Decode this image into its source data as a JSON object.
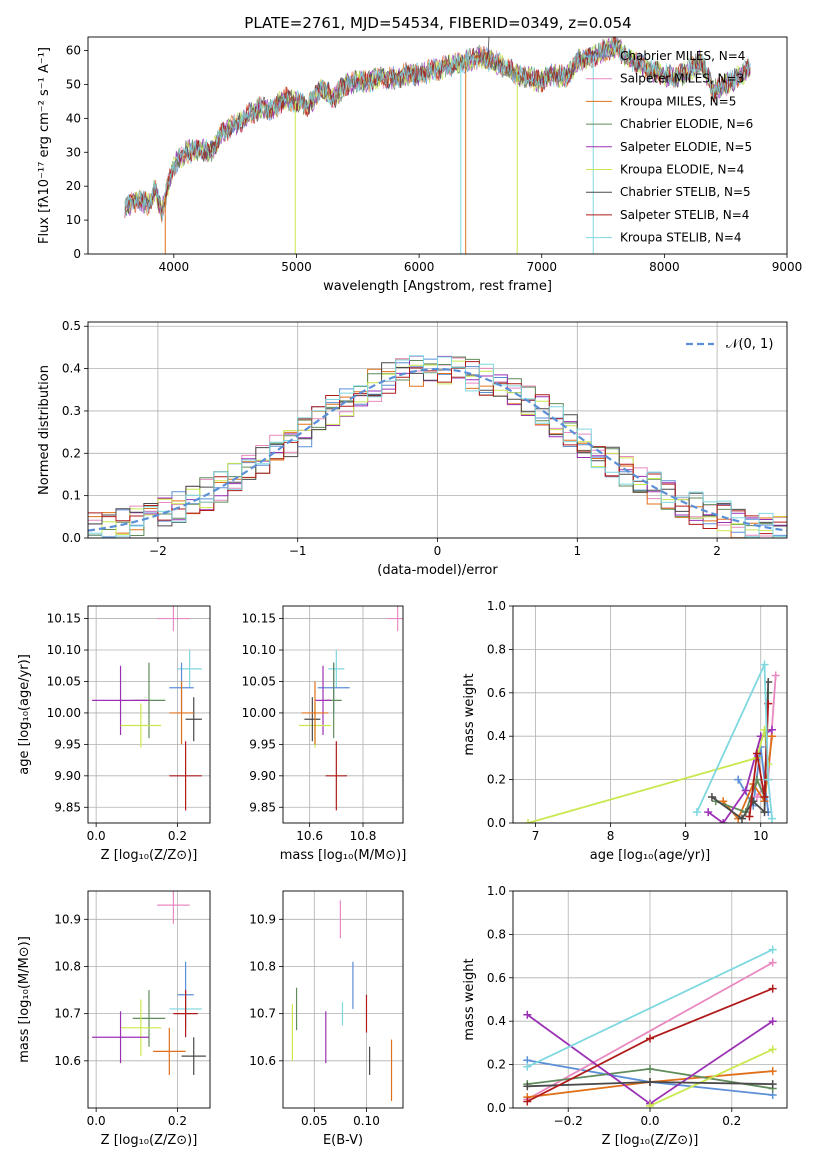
{
  "chart_data": [
    {
      "id": "spectrum",
      "type": "line",
      "title": "PLATE=2761, MJD=54534, FIBERID=0349, z=0.054",
      "xlabel": "wavelength [Angstrom, rest frame]",
      "ylabel": "Flux [fλ10⁻¹⁷ erg cm⁻² s⁻¹ A⁻¹]",
      "xlim": [
        3300,
        9000
      ],
      "ylim": [
        0,
        64
      ],
      "xticks": [
        4000,
        5000,
        6000,
        7000,
        8000,
        9000
      ],
      "yticks": [
        0,
        10,
        20,
        30,
        40,
        50,
        60
      ],
      "legend_position": "right",
      "series": [
        {
          "name": "Chabrier MILES, N_SSP=4",
          "color": "#5b8fd8"
        },
        {
          "name": "Salpeter MILES, N_SSP=3",
          "color": "#e889c0"
        },
        {
          "name": "Kroupa MILES, N_SSP=5",
          "color": "#e0701a"
        },
        {
          "name": "Chabrier ELODIE, N_SSP=6",
          "color": "#5f8c5a"
        },
        {
          "name": "Salpeter ELODIE, N_SSP=5",
          "color": "#9b30b5"
        },
        {
          "name": "Kroupa ELODIE, N_SSP=4",
          "color": "#c9e84e"
        },
        {
          "name": "Chabrier STELIB, N_SSP=5",
          "color": "#4a4a4a"
        },
        {
          "name": "Salpeter STELIB, N_SSP=4",
          "color": "#b01a1a"
        },
        {
          "name": "Kroupa STELIB, N_SSP=4",
          "color": "#7fd8e0"
        }
      ],
      "continuum": [
        [
          3600,
          14
        ],
        [
          3700,
          16
        ],
        [
          3800,
          15
        ],
        [
          3850,
          19
        ],
        [
          3900,
          12
        ],
        [
          3950,
          20
        ],
        [
          4000,
          26
        ],
        [
          4100,
          30
        ],
        [
          4200,
          31
        ],
        [
          4300,
          30
        ],
        [
          4350,
          33
        ],
        [
          4400,
          36
        ],
        [
          4500,
          38
        ],
        [
          4600,
          41
        ],
        [
          4700,
          43
        ],
        [
          4800,
          42
        ],
        [
          4900,
          46
        ],
        [
          5000,
          45
        ],
        [
          5100,
          44
        ],
        [
          5200,
          49
        ],
        [
          5300,
          46
        ],
        [
          5400,
          50
        ],
        [
          5500,
          51
        ],
        [
          5600,
          51
        ],
        [
          5700,
          52
        ],
        [
          5800,
          52
        ],
        [
          5900,
          53
        ],
        [
          6000,
          53
        ],
        [
          6100,
          54
        ],
        [
          6200,
          55
        ],
        [
          6300,
          56
        ],
        [
          6400,
          57
        ],
        [
          6500,
          58
        ],
        [
          6600,
          57
        ],
        [
          6700,
          55
        ],
        [
          6800,
          53
        ],
        [
          6900,
          52
        ],
        [
          7000,
          51
        ],
        [
          7100,
          53
        ],
        [
          7200,
          52
        ],
        [
          7300,
          57
        ],
        [
          7400,
          58
        ],
        [
          7500,
          60
        ],
        [
          7600,
          61
        ],
        [
          7700,
          58
        ],
        [
          7800,
          56
        ],
        [
          7900,
          54
        ],
        [
          8000,
          53
        ],
        [
          8100,
          52
        ],
        [
          8200,
          54
        ],
        [
          8300,
          57
        ],
        [
          8400,
          48
        ],
        [
          8500,
          50
        ],
        [
          8600,
          52
        ],
        [
          8700,
          55
        ]
      ],
      "dips": [
        [
          3930,
          0
        ],
        [
          4990,
          0
        ],
        [
          6340,
          0
        ],
        [
          6380,
          0
        ],
        [
          6800,
          0
        ],
        [
          7420,
          0
        ]
      ],
      "spike": [
        6560,
        64
      ]
    },
    {
      "id": "residuals",
      "type": "line",
      "xlabel": "(data-model)/error",
      "ylabel": "Normed distribution",
      "xlim": [
        -2.5,
        2.5
      ],
      "ylim": [
        0,
        0.51
      ],
      "xticks": [
        -2,
        -1,
        0,
        1,
        2
      ],
      "yticks": [
        0.0,
        0.1,
        0.2,
        0.3,
        0.4,
        0.5
      ],
      "legend": "𝒩(0, 1)",
      "bin_width": 0.1,
      "gaussian": {
        "mu": 0,
        "sigma": 1,
        "color": "#5b8fd8"
      }
    },
    {
      "id": "age-vs-Z",
      "type": "scatter",
      "xlabel": "Z [log₁₀(Z/Z⊙)]",
      "ylabel": "age  [log₁₀(age/yr)]",
      "xlim": [
        -0.02,
        0.28
      ],
      "ylim": [
        9.825,
        10.17
      ],
      "xticks": [
        0.0,
        0.2
      ],
      "yticks": [
        9.85,
        9.9,
        9.95,
        10.0,
        10.05,
        10.1,
        10.15
      ],
      "points": [
        {
          "x": 0.19,
          "xerr": 0.04,
          "y": 10.15,
          "yerr": 0.02,
          "color": "#e889c0"
        },
        {
          "x": 0.23,
          "xerr": 0.03,
          "y": 10.07,
          "yerr": 0.03,
          "color": "#7fd8e0"
        },
        {
          "x": 0.21,
          "xerr": 0.03,
          "y": 10.04,
          "yerr": 0.04,
          "color": "#5b8fd8"
        },
        {
          "x": 0.13,
          "xerr": 0.04,
          "y": 10.02,
          "yerr": 0.06,
          "color": "#5f8c5a"
        },
        {
          "x": 0.06,
          "xerr": 0.07,
          "y": 10.02,
          "yerr": 0.055,
          "color": "#9b30b5"
        },
        {
          "x": 0.11,
          "xerr": 0.05,
          "y": 9.98,
          "yerr": 0.035,
          "color": "#c9e84e"
        },
        {
          "x": 0.24,
          "xerr": 0.02,
          "y": 9.99,
          "yerr": 0.035,
          "color": "#4a4a4a"
        },
        {
          "x": 0.21,
          "xerr": 0.03,
          "y": 10.0,
          "yerr": 0.05,
          "color": "#e0701a"
        },
        {
          "x": 0.22,
          "xerr": 0.04,
          "y": 9.9,
          "yerr": 0.055,
          "color": "#b01a1a"
        }
      ]
    },
    {
      "id": "age-vs-mass",
      "type": "scatter",
      "xlabel": "mass [log₁₀(M/M⊙)]",
      "xlim": [
        10.5,
        10.95
      ],
      "ylim": [
        9.825,
        10.17
      ],
      "xticks": [
        10.6,
        10.8
      ],
      "yticks": [
        9.85,
        9.9,
        9.95,
        10.0,
        10.05,
        10.1,
        10.15
      ],
      "points": [
        {
          "x": 10.93,
          "xerr": 0.04,
          "y": 10.15,
          "yerr": 0.02,
          "color": "#e889c0"
        },
        {
          "x": 10.7,
          "xerr": 0.03,
          "y": 10.07,
          "yerr": 0.03,
          "color": "#7fd8e0"
        },
        {
          "x": 10.69,
          "xerr": 0.06,
          "y": 10.04,
          "yerr": 0.04,
          "color": "#5b8fd8"
        },
        {
          "x": 10.69,
          "xerr": 0.03,
          "y": 10.02,
          "yerr": 0.06,
          "color": "#5f8c5a"
        },
        {
          "x": 10.65,
          "xerr": 0.03,
          "y": 10.02,
          "yerr": 0.055,
          "color": "#9b30b5"
        },
        {
          "x": 10.62,
          "xerr": 0.06,
          "y": 9.98,
          "yerr": 0.035,
          "color": "#c9e84e"
        },
        {
          "x": 10.61,
          "xerr": 0.03,
          "y": 9.99,
          "yerr": 0.035,
          "color": "#4a4a4a"
        },
        {
          "x": 10.62,
          "xerr": 0.05,
          "y": 10.0,
          "yerr": 0.05,
          "color": "#e0701a"
        },
        {
          "x": 10.7,
          "xerr": 0.04,
          "y": 9.9,
          "yerr": 0.055,
          "color": "#b01a1a"
        }
      ]
    },
    {
      "id": "mass-weight-vs-age",
      "type": "line",
      "xlabel": "age  [log₁₀(age/yr)]",
      "ylabel": "mass weight",
      "xlim": [
        6.7,
        10.35
      ],
      "ylim": [
        0,
        1.0
      ],
      "xticks": [
        7,
        8,
        9,
        10
      ],
      "yticks": [
        0.0,
        0.2,
        0.4,
        0.6,
        0.8,
        1.0
      ],
      "series": [
        {
          "color": "#5b8fd8",
          "x": [
            9.7,
            9.9,
            10.0,
            10.1
          ],
          "y": [
            0.2,
            0.08,
            0.35,
            0.05
          ]
        },
        {
          "color": "#e889c0",
          "x": [
            9.95,
            10.1,
            10.2
          ],
          "y": [
            0.12,
            0.2,
            0.68
          ]
        },
        {
          "color": "#e0701a",
          "x": [
            9.5,
            9.7,
            9.9,
            10.05,
            10.15
          ],
          "y": [
            0.1,
            0.02,
            0.18,
            0.1,
            0.4
          ]
        },
        {
          "color": "#5f8c5a",
          "x": [
            9.4,
            9.8,
            9.95,
            10.05,
            10.1
          ],
          "y": [
            0.1,
            0.05,
            0.2,
            0.12,
            0.6
          ]
        },
        {
          "color": "#9b30b5",
          "x": [
            9.3,
            9.5,
            9.8,
            10.0,
            10.15
          ],
          "y": [
            0.05,
            0.0,
            0.15,
            0.4,
            0.43
          ]
        },
        {
          "color": "#c9e84e",
          "x": [
            6.9,
            9.95,
            10.05,
            10.1
          ],
          "y": [
            0.0,
            0.3,
            0.43,
            0.27
          ]
        },
        {
          "color": "#4a4a4a",
          "x": [
            9.35,
            9.75,
            9.9,
            10.05,
            10.1
          ],
          "y": [
            0.12,
            0.02,
            0.1,
            0.05,
            0.65
          ]
        },
        {
          "color": "#b01a1a",
          "x": [
            9.85,
            9.95,
            10.05,
            10.1
          ],
          "y": [
            0.03,
            0.32,
            0.12,
            0.55
          ]
        },
        {
          "color": "#7fd8e0",
          "x": [
            9.15,
            10.05,
            10.1,
            10.15
          ],
          "y": [
            0.05,
            0.73,
            0.2,
            0.02
          ]
        }
      ]
    },
    {
      "id": "mass-vs-Z",
      "type": "scatter",
      "xlabel": "Z [log₁₀(Z/Z⊙)]",
      "ylabel": "mass [log₁₀(M/M⊙)]",
      "xlim": [
        -0.02,
        0.28
      ],
      "ylim": [
        10.5,
        10.96
      ],
      "xticks": [
        0.0,
        0.2
      ],
      "yticks": [
        10.6,
        10.7,
        10.8,
        10.9
      ],
      "points": [
        {
          "x": 0.19,
          "xerr": 0.04,
          "y": 10.93,
          "yerr": 0.04,
          "color": "#e889c0"
        },
        {
          "x": 0.22,
          "xerr": 0.02,
          "y": 10.74,
          "yerr": 0.07,
          "color": "#5b8fd8"
        },
        {
          "x": 0.22,
          "xerr": 0.04,
          "y": 10.71,
          "yerr": 0.02,
          "color": "#7fd8e0"
        },
        {
          "x": 0.22,
          "xerr": 0.03,
          "y": 10.7,
          "yerr": 0.05,
          "color": "#b01a1a"
        },
        {
          "x": 0.13,
          "xerr": 0.04,
          "y": 10.69,
          "yerr": 0.06,
          "color": "#5f8c5a"
        },
        {
          "x": 0.11,
          "xerr": 0.05,
          "y": 10.67,
          "yerr": 0.06,
          "color": "#c9e84e"
        },
        {
          "x": 0.06,
          "xerr": 0.07,
          "y": 10.65,
          "yerr": 0.055,
          "color": "#9b30b5"
        },
        {
          "x": 0.18,
          "xerr": 0.04,
          "y": 10.62,
          "yerr": 0.05,
          "color": "#e0701a"
        },
        {
          "x": 0.24,
          "xerr": 0.03,
          "y": 10.61,
          "yerr": 0.04,
          "color": "#4a4a4a"
        }
      ]
    },
    {
      "id": "mass-vs-EBV",
      "type": "scatter",
      "xlabel": "E(B-V)",
      "xlim": [
        0.02,
        0.135
      ],
      "ylim": [
        10.5,
        10.96
      ],
      "xticks": [
        0.05,
        0.1
      ],
      "yticks": [
        10.6,
        10.7,
        10.8,
        10.9
      ],
      "points": [
        {
          "x": 0.075,
          "y": 10.9,
          "yerr": 0.04,
          "color": "#e889c0"
        },
        {
          "x": 0.087,
          "y": 10.76,
          "yerr": 0.05,
          "color": "#5b8fd8"
        },
        {
          "x": 0.1,
          "y": 10.7,
          "yerr": 0.04,
          "color": "#b01a1a"
        },
        {
          "x": 0.033,
          "y": 10.71,
          "yerr": 0.045,
          "color": "#5f8c5a"
        },
        {
          "x": 0.029,
          "y": 10.66,
          "yerr": 0.06,
          "color": "#c9e84e"
        },
        {
          "x": 0.077,
          "y": 10.7,
          "yerr": 0.025,
          "color": "#7fd8e0"
        },
        {
          "x": 0.061,
          "y": 10.65,
          "yerr": 0.055,
          "color": "#9b30b5"
        },
        {
          "x": 0.103,
          "y": 10.6,
          "yerr": 0.03,
          "color": "#4a4a4a"
        },
        {
          "x": 0.124,
          "y": 10.58,
          "yerr": 0.065,
          "color": "#e0701a"
        }
      ]
    },
    {
      "id": "mass-weight-vs-Z",
      "type": "line",
      "xlabel": "Z [log₁₀(Z/Z⊙)]",
      "ylabel": "mass weight",
      "xlim": [
        -0.335,
        0.335
      ],
      "ylim": [
        0,
        1.0
      ],
      "xticks": [
        -0.2,
        0.0,
        0.2
      ],
      "yticks": [
        0.0,
        0.2,
        0.4,
        0.6,
        0.8,
        1.0
      ],
      "series": [
        {
          "color": "#5b8fd8",
          "x": [
            -0.3,
            0.0,
            0.3
          ],
          "y": [
            0.22,
            0.12,
            0.06
          ]
        },
        {
          "color": "#e889c0",
          "x": [
            -0.3,
            0.3
          ],
          "y": [
            0.04,
            0.67
          ]
        },
        {
          "color": "#e0701a",
          "x": [
            -0.3,
            0.0,
            0.3
          ],
          "y": [
            0.05,
            0.12,
            0.17
          ]
        },
        {
          "color": "#5f8c5a",
          "x": [
            -0.3,
            0.0,
            0.3
          ],
          "y": [
            0.11,
            0.18,
            0.09
          ]
        },
        {
          "color": "#9b30b5",
          "x": [
            -0.3,
            0.0,
            0.3
          ],
          "y": [
            0.43,
            0.02,
            0.4
          ]
        },
        {
          "color": "#c9e84e",
          "x": [
            0.0,
            0.3
          ],
          "y": [
            0.01,
            0.27
          ]
        },
        {
          "color": "#4a4a4a",
          "x": [
            -0.3,
            0.0,
            0.3
          ],
          "y": [
            0.1,
            0.12,
            0.11
          ]
        },
        {
          "color": "#b01a1a",
          "x": [
            -0.3,
            0.0,
            0.3
          ],
          "y": [
            0.03,
            0.32,
            0.55
          ]
        },
        {
          "color": "#7fd8e0",
          "x": [
            -0.3,
            0.3
          ],
          "y": [
            0.19,
            0.73
          ]
        }
      ]
    }
  ]
}
